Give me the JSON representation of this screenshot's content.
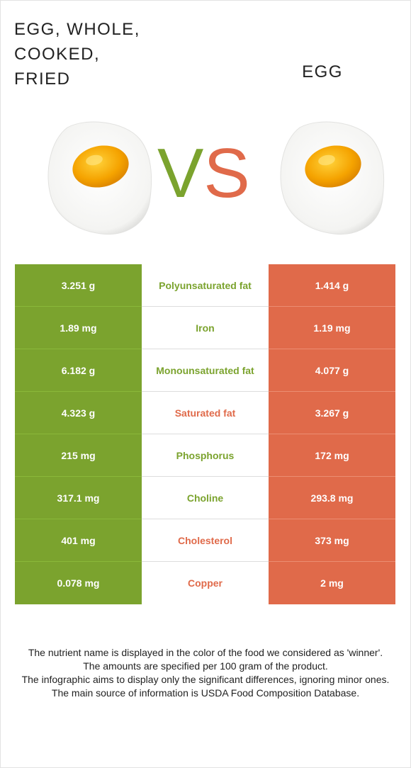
{
  "header": {
    "left_title": "EGG, WHOLE,\nCOOKED,\nFRIED",
    "right_title": "EGG",
    "vs_v": "V",
    "vs_s": "S"
  },
  "colors": {
    "winner_left": "#7ba32e",
    "winner_right": "#e06a4a"
  },
  "nutrients": [
    {
      "left": "3.251 g",
      "name": "Polyunsaturated fat",
      "right": "1.414 g",
      "winner": "left"
    },
    {
      "left": "1.89 mg",
      "name": "Iron",
      "right": "1.19 mg",
      "winner": "left"
    },
    {
      "left": "6.182 g",
      "name": "Monounsaturated fat",
      "right": "4.077 g",
      "winner": "left"
    },
    {
      "left": "4.323 g",
      "name": "Saturated fat",
      "right": "3.267 g",
      "winner": "right"
    },
    {
      "left": "215 mg",
      "name": "Phosphorus",
      "right": "172 mg",
      "winner": "left"
    },
    {
      "left": "317.1 mg",
      "name": "Choline",
      "right": "293.8 mg",
      "winner": "left"
    },
    {
      "left": "401 mg",
      "name": "Cholesterol",
      "right": "373 mg",
      "winner": "right"
    },
    {
      "left": "0.078 mg",
      "name": "Copper",
      "right": "2 mg",
      "winner": "right"
    }
  ],
  "footer": {
    "line1": "The nutrient name is displayed in the color of the food we considered as 'winner'.",
    "line2": "The amounts are specified per 100 gram of the product.",
    "line3": "The infographic aims to display only the significant differences, ignoring minor ones.",
    "line4": "The main source of information is USDA Food Composition Database."
  }
}
